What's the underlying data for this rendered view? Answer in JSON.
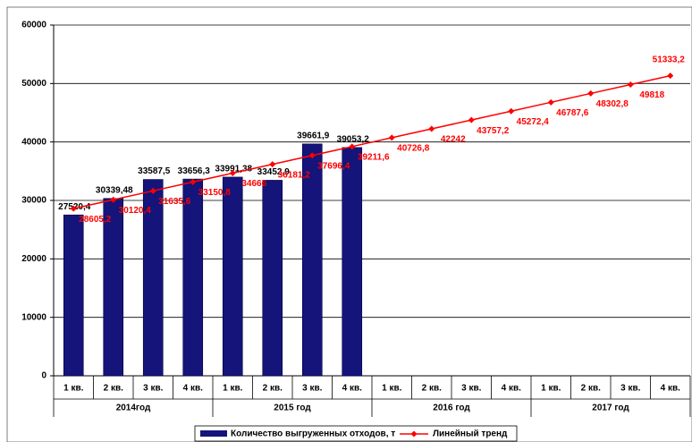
{
  "chart_data": {
    "type": "bar",
    "categories": [
      "1 кв.",
      "2 кв.",
      "3 кв.",
      "4 кв.",
      "1 кв.",
      "2 кв.",
      "3 кв.",
      "4 кв.",
      "1 кв.",
      "2 кв.",
      "3 кв.",
      "4 кв.",
      "1 кв.",
      "2 кв.",
      "3 кв.",
      "4 кв."
    ],
    "groups": [
      "2014год",
      "2015 год",
      "2016 год",
      "2017 год"
    ],
    "series": [
      {
        "name": "Количество выгруженных отходов, т",
        "type": "bar",
        "color": "#14147a",
        "values": [
          27520.4,
          30339.48,
          33587.5,
          33656.3,
          33991.38,
          33452.9,
          39661.9,
          39053.2,
          null,
          null,
          null,
          null,
          null,
          null,
          null,
          null
        ],
        "value_labels": [
          "27520,4",
          "30339,48",
          "33587,5",
          "33656,3",
          "33991,38",
          "33452,9",
          "39661,9",
          "39053,2",
          null,
          null,
          null,
          null,
          null,
          null,
          null,
          null
        ]
      },
      {
        "name": "Линейный тренд",
        "type": "line",
        "color": "#ff0000",
        "values": [
          28605.2,
          30120.4,
          31635.6,
          33150.8,
          34666,
          36181.2,
          37696.4,
          39211.6,
          40726.8,
          42242,
          43757.2,
          45272.4,
          46787.6,
          48302.8,
          49818,
          51333.2
        ],
        "value_labels": [
          "28605,2",
          "30120,4",
          "31635,6",
          "33150,8",
          "34666",
          "36181,2",
          "37696,4",
          "39211,6",
          "40726,8",
          "42242",
          "43757,2",
          "45272,4",
          "46787,6",
          "48302,8",
          "49818",
          "51333,2"
        ]
      }
    ],
    "ylim": [
      0,
      60000
    ],
    "yticks": [
      0,
      10000,
      20000,
      30000,
      40000,
      50000,
      60000
    ],
    "grid": true
  }
}
